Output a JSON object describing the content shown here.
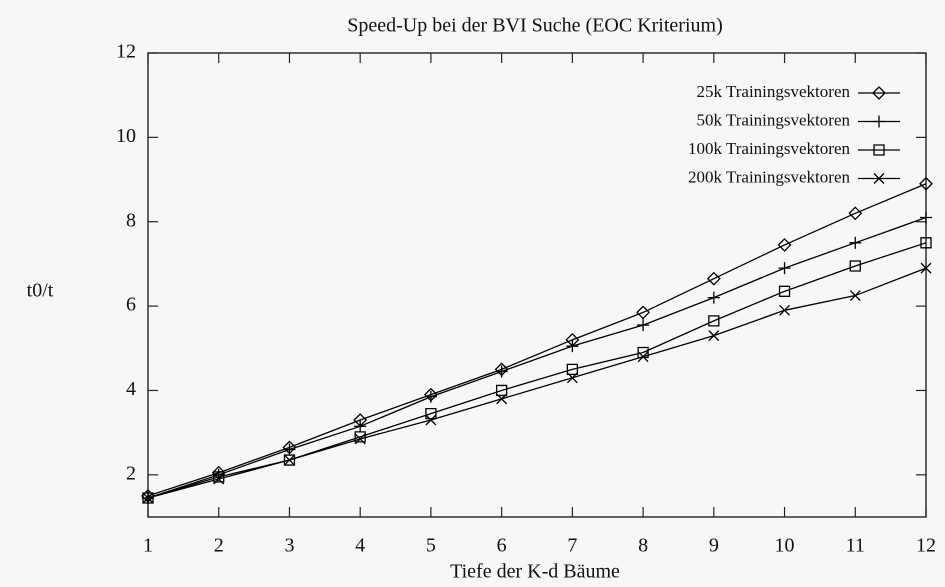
{
  "chart_data": {
    "type": "line",
    "title": "Speed-Up bei der BVI Suche (EOC Kriterium)",
    "x_label": "Tiefe der K-d Bäume",
    "y_label": "t0/t",
    "x": [
      1,
      2,
      3,
      4,
      5,
      6,
      7,
      8,
      9,
      10,
      11,
      12
    ],
    "series": [
      {
        "name": "25k Trainingsvektoren",
        "color": "#000000",
        "marker": "diamond",
        "values": [
          1.5,
          2.05,
          2.65,
          3.3,
          3.9,
          4.5,
          5.2,
          5.85,
          6.65,
          7.45,
          8.2,
          8.9
        ]
      },
      {
        "name": "50k Trainingsvektoren",
        "color": "#000000",
        "marker": "plus",
        "values": [
          1.45,
          2.0,
          2.6,
          3.15,
          3.85,
          4.45,
          5.05,
          5.55,
          6.2,
          6.9,
          7.5,
          8.1
        ]
      },
      {
        "name": "100k Trainingsvektoren",
        "color": "#000000",
        "marker": "square",
        "values": [
          1.45,
          1.95,
          2.35,
          2.9,
          3.45,
          4.0,
          4.5,
          4.9,
          5.65,
          6.35,
          6.95,
          7.5
        ]
      },
      {
        "name": "200k Trainingsvektoren",
        "color": "#000000",
        "marker": "cross",
        "values": [
          1.45,
          1.9,
          2.35,
          2.85,
          3.3,
          3.8,
          4.3,
          4.8,
          5.3,
          5.9,
          6.25,
          6.9
        ]
      }
    ],
    "xlim": [
      1,
      12
    ],
    "xticks": [
      1,
      2,
      3,
      4,
      5,
      6,
      7,
      8,
      9,
      10,
      11,
      12
    ],
    "ylim": [
      1,
      12
    ],
    "yticks": [
      2,
      4,
      6,
      8,
      10,
      12
    ],
    "grid": false,
    "legend": "top-right"
  }
}
